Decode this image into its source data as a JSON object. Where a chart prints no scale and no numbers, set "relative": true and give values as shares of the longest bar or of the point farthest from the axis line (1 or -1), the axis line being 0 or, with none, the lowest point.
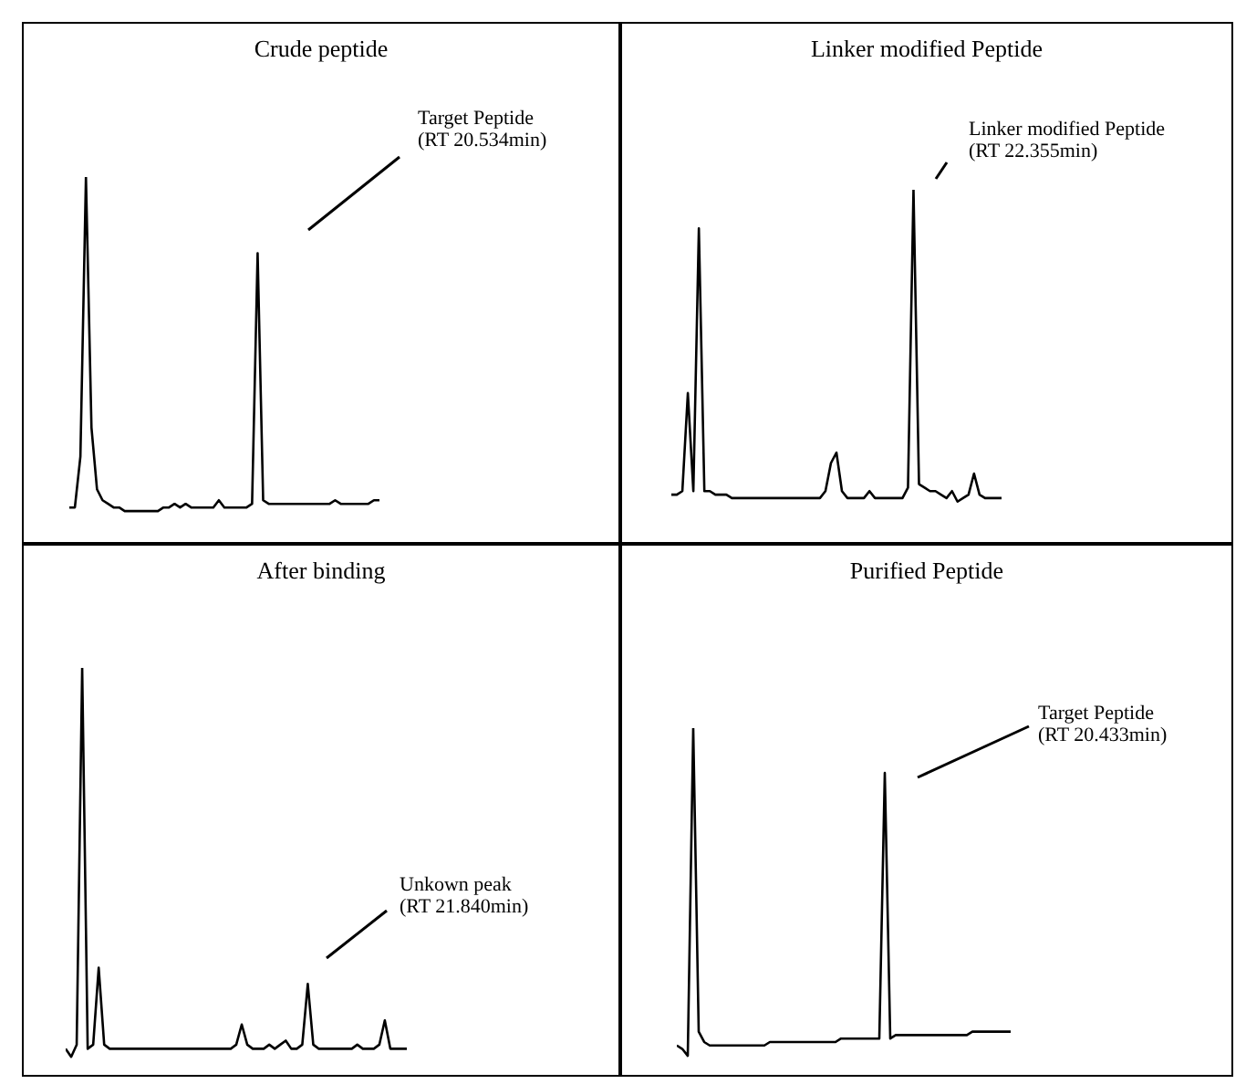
{
  "chart_data": [
    {
      "type": "line",
      "title": "Crude peptide",
      "relative": true,
      "annotations": [
        "Target Peptide\n(RT 20.534min)"
      ],
      "categories": [
        null,
        null,
        null,
        null,
        null,
        null,
        null,
        null,
        null,
        null,
        null,
        null,
        null,
        null,
        null,
        null,
        null,
        null,
        null,
        null,
        null,
        null,
        null,
        null,
        null,
        null,
        null,
        null,
        null,
        null,
        null,
        null,
        null,
        null,
        null,
        null,
        null,
        null,
        null,
        null,
        null,
        null,
        null,
        null,
        null,
        null,
        null,
        null,
        null,
        null,
        null,
        null,
        null,
        null,
        null,
        null,
        null
      ],
      "series": [
        {
          "color": "#000000",
          "values": [
            0.09,
            0.09,
            0.23,
            1.0,
            0.31,
            0.14,
            0.11,
            0.1,
            0.09,
            0.09,
            0.08,
            0.08,
            0.08,
            0.08,
            0.08,
            0.08,
            0.08,
            0.09,
            0.09,
            0.1,
            0.09,
            0.1,
            0.09,
            0.09,
            0.09,
            0.09,
            0.09,
            0.11,
            0.09,
            0.09,
            0.09,
            0.09,
            0.09,
            0.1,
            0.79,
            0.11,
            0.1,
            0.1,
            0.1,
            0.1,
            0.1,
            0.1,
            0.1,
            0.1,
            0.1,
            0.1,
            0.1,
            0.1,
            0.11,
            0.1,
            0.1,
            0.1,
            0.1,
            0.1,
            0.1,
            0.11,
            0.11
          ]
        }
      ]
    },
    {
      "type": "line",
      "title": "Linker modified Peptide",
      "relative": true,
      "annotations": [
        "Linker modified Peptide\n(RT 22.355min)"
      ],
      "categories": [
        null,
        null,
        null,
        null,
        null,
        null,
        null,
        null,
        null,
        null,
        null,
        null,
        null,
        null,
        null,
        null,
        null,
        null,
        null,
        null,
        null,
        null,
        null,
        null,
        null,
        null,
        null,
        null,
        null,
        null,
        null,
        null,
        null,
        null,
        null,
        null,
        null,
        null,
        null,
        null,
        null,
        null,
        null,
        null,
        null,
        null,
        null,
        null,
        null,
        null,
        null,
        null,
        null,
        null,
        null,
        null,
        null,
        null,
        null,
        null,
        null
      ],
      "series": [
        {
          "color": "#000000",
          "values": [
            0.13,
            0.13,
            0.14,
            0.42,
            0.14,
            0.89,
            0.14,
            0.14,
            0.13,
            0.13,
            0.13,
            0.12,
            0.12,
            0.12,
            0.12,
            0.12,
            0.12,
            0.12,
            0.12,
            0.12,
            0.12,
            0.12,
            0.12,
            0.12,
            0.12,
            0.12,
            0.12,
            0.12,
            0.14,
            0.22,
            0.25,
            0.14,
            0.12,
            0.12,
            0.12,
            0.12,
            0.14,
            0.12,
            0.12,
            0.12,
            0.12,
            0.12,
            0.12,
            0.15,
            1.0,
            0.16,
            0.15,
            0.14,
            0.14,
            0.13,
            0.12,
            0.14,
            0.11,
            0.12,
            0.13,
            0.19,
            0.13,
            0.12,
            0.12,
            0.12,
            0.12
          ]
        }
      ]
    },
    {
      "type": "line",
      "title": "After binding",
      "relative": true,
      "annotations": [
        "Unkown peak\n(RT 21.840min)"
      ],
      "categories": [
        null,
        null,
        null,
        null,
        null,
        null,
        null,
        null,
        null,
        null,
        null,
        null,
        null,
        null,
        null,
        null,
        null,
        null,
        null,
        null,
        null,
        null,
        null,
        null,
        null,
        null,
        null,
        null,
        null,
        null,
        null,
        null,
        null,
        null,
        null,
        null,
        null,
        null,
        null,
        null,
        null,
        null,
        null,
        null,
        null,
        null,
        null,
        null,
        null,
        null,
        null,
        null,
        null,
        null,
        null,
        null,
        null,
        null,
        null,
        null,
        null,
        null,
        null
      ],
      "series": [
        {
          "color": "#000000",
          "values": [
            0.06,
            0.04,
            0.07,
            1.0,
            0.06,
            0.07,
            0.26,
            0.07,
            0.06,
            0.06,
            0.06,
            0.06,
            0.06,
            0.06,
            0.06,
            0.06,
            0.06,
            0.06,
            0.06,
            0.06,
            0.06,
            0.06,
            0.06,
            0.06,
            0.06,
            0.06,
            0.06,
            0.06,
            0.06,
            0.06,
            0.06,
            0.07,
            0.12,
            0.07,
            0.06,
            0.06,
            0.06,
            0.07,
            0.06,
            0.07,
            0.08,
            0.06,
            0.06,
            0.07,
            0.22,
            0.07,
            0.06,
            0.06,
            0.06,
            0.06,
            0.06,
            0.06,
            0.06,
            0.07,
            0.06,
            0.06,
            0.06,
            0.07,
            0.13,
            0.06,
            0.06,
            0.06,
            0.06
          ]
        }
      ]
    },
    {
      "type": "line",
      "title": "Purified Peptide",
      "relative": true,
      "annotations": [
        "Target Peptide\n(RT 20.433min)"
      ],
      "categories": [
        null,
        null,
        null,
        null,
        null,
        null,
        null,
        null,
        null,
        null,
        null,
        null,
        null,
        null,
        null,
        null,
        null,
        null,
        null,
        null,
        null,
        null,
        null,
        null,
        null,
        null,
        null,
        null,
        null,
        null,
        null,
        null,
        null,
        null,
        null,
        null,
        null,
        null,
        null,
        null,
        null,
        null,
        null,
        null,
        null,
        null,
        null,
        null,
        null,
        null,
        null,
        null,
        null,
        null,
        null,
        null,
        null,
        null,
        null,
        null,
        null,
        null
      ],
      "series": [
        {
          "color": "#000000",
          "values": [
            0.08,
            0.07,
            0.05,
            1.0,
            0.12,
            0.09,
            0.08,
            0.08,
            0.08,
            0.08,
            0.08,
            0.08,
            0.08,
            0.08,
            0.08,
            0.08,
            0.08,
            0.09,
            0.09,
            0.09,
            0.09,
            0.09,
            0.09,
            0.09,
            0.09,
            0.09,
            0.09,
            0.09,
            0.09,
            0.09,
            0.1,
            0.1,
            0.1,
            0.1,
            0.1,
            0.1,
            0.1,
            0.1,
            0.87,
            0.1,
            0.11,
            0.11,
            0.11,
            0.11,
            0.11,
            0.11,
            0.11,
            0.11,
            0.11,
            0.11,
            0.11,
            0.11,
            0.11,
            0.11,
            0.12,
            0.12,
            0.12,
            0.12,
            0.12,
            0.12,
            0.12,
            0.12
          ]
        }
      ]
    }
  ]
}
